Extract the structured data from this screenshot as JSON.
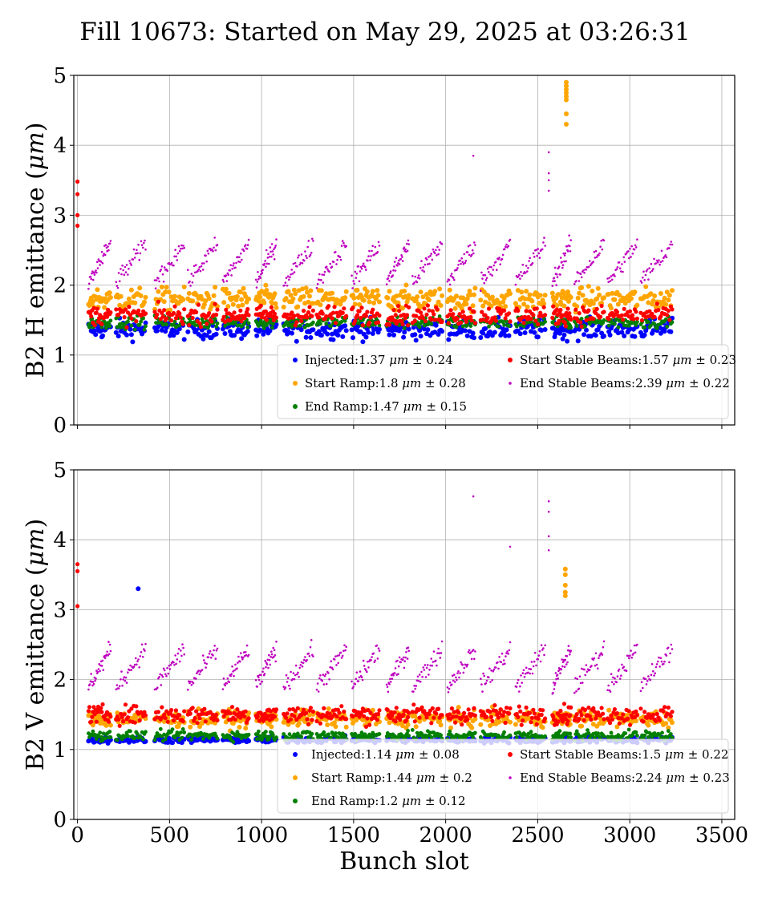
{
  "title": "Fill 10673: Started on May 29, 2025 at 03:26:31",
  "chart_data": [
    {
      "type": "scatter",
      "ylabel": "B2 H emittance (μm)",
      "xlabel": "",
      "xlim": [
        -20,
        3570
      ],
      "ylim": [
        0,
        5
      ],
      "xticks": [
        0,
        500,
        1000,
        1500,
        2000,
        2500,
        3000,
        3500
      ],
      "xtick_labels_visible": false,
      "yticks": [
        0,
        1,
        2,
        3,
        4,
        5
      ],
      "grid": true,
      "legend_position": "lower-right",
      "series": [
        {
          "name": "Injected",
          "label": "Injected:1.37 μm ± 0.24",
          "color": "#0000ff",
          "mean": 1.37,
          "std": 0.24,
          "marker_size": 3
        },
        {
          "name": "Start Ramp",
          "label": "Start Ramp:1.8 μm ± 0.28",
          "color": "#ffa500",
          "mean": 1.8,
          "std": 0.28,
          "marker_size": 3
        },
        {
          "name": "End Ramp",
          "label": "End Ramp:1.47 μm ± 0.15",
          "color": "#008000",
          "mean": 1.47,
          "std": 0.15,
          "marker_size": 2.4
        },
        {
          "name": "Start Stable Beams",
          "label": "Start Stable Beams:1.57 μm ± 0.23",
          "color": "#ff0000",
          "mean": 1.57,
          "std": 0.23,
          "marker_size": 2.6
        },
        {
          "name": "End Stable Beams",
          "label": "End Stable Beams:2.39 μm ± 0.22",
          "color": "#bf00bf",
          "mean": 2.39,
          "std": 0.22,
          "marker_size": 1.3
        }
      ],
      "outliers": [
        {
          "series": 1,
          "x": 2655,
          "values": [
            4.9,
            4.85,
            4.8,
            4.75,
            4.7,
            4.65,
            4.45,
            4.3
          ]
        },
        {
          "series": 4,
          "x": 2560,
          "values": [
            3.9,
            3.6,
            3.5,
            3.35
          ]
        },
        {
          "series": 4,
          "x": 2150,
          "values": [
            3.85
          ]
        },
        {
          "series": 3,
          "x": 0,
          "values": [
            3.48,
            3.3,
            3.0,
            2.85
          ]
        }
      ]
    },
    {
      "type": "scatter",
      "ylabel": "B2 V emittance (μm)",
      "xlabel": "Bunch slot",
      "xlim": [
        -20,
        3570
      ],
      "ylim": [
        0,
        5
      ],
      "xticks": [
        0,
        500,
        1000,
        1500,
        2000,
        2500,
        3000,
        3500
      ],
      "xtick_labels_visible": true,
      "yticks": [
        0,
        1,
        2,
        3,
        4,
        5
      ],
      "grid": true,
      "legend_position": "lower-right",
      "series": [
        {
          "name": "Injected",
          "label": "Injected:1.14 μm ± 0.08",
          "color": "#0000ff",
          "mean": 1.14,
          "std": 0.08,
          "marker_size": 3
        },
        {
          "name": "Start Ramp",
          "label": "Start Ramp:1.44 μm ± 0.2",
          "color": "#ffa500",
          "mean": 1.44,
          "std": 0.2,
          "marker_size": 3
        },
        {
          "name": "End Ramp",
          "label": "End Ramp:1.2 μm ± 0.12",
          "color": "#008000",
          "mean": 1.2,
          "std": 0.12,
          "marker_size": 2.4
        },
        {
          "name": "Start Stable Beams",
          "label": "Start Stable Beams:1.5 μm ± 0.22",
          "color": "#ff0000",
          "mean": 1.5,
          "std": 0.22,
          "marker_size": 2.6
        },
        {
          "name": "End Stable Beams",
          "label": "End Stable Beams:2.24 μm ± 0.23",
          "color": "#bf00bf",
          "mean": 2.24,
          "std": 0.23,
          "marker_size": 1.3
        }
      ],
      "outliers": [
        {
          "series": 4,
          "x": 2150,
          "values": [
            4.62
          ]
        },
        {
          "series": 4,
          "x": 2560,
          "values": [
            4.55,
            4.4,
            4.05,
            3.85
          ]
        },
        {
          "series": 4,
          "x": 2350,
          "values": [
            3.9
          ]
        },
        {
          "series": 1,
          "x": 2650,
          "values": [
            3.58,
            3.5,
            3.35,
            3.25,
            3.2
          ]
        },
        {
          "series": 0,
          "x": 330,
          "values": [
            3.3
          ]
        },
        {
          "series": 3,
          "x": 0,
          "values": [
            3.65,
            3.55,
            3.05
          ]
        }
      ]
    }
  ],
  "bunch_trains": [
    {
      "x0": 60,
      "x1": 180
    },
    {
      "x0": 210,
      "x1": 370
    },
    {
      "x0": 420,
      "x1": 580
    },
    {
      "x0": 600,
      "x1": 760
    },
    {
      "x0": 790,
      "x1": 930
    },
    {
      "x0": 970,
      "x1": 1080
    },
    {
      "x0": 1120,
      "x1": 1280
    },
    {
      "x0": 1300,
      "x1": 1460
    },
    {
      "x0": 1490,
      "x1": 1640
    },
    {
      "x0": 1680,
      "x1": 1800
    },
    {
      "x0": 1820,
      "x1": 1980
    },
    {
      "x0": 2010,
      "x1": 2160
    },
    {
      "x0": 2190,
      "x1": 2350
    },
    {
      "x0": 2380,
      "x1": 2540
    },
    {
      "x0": 2580,
      "x1": 2680
    },
    {
      "x0": 2700,
      "x1": 2860
    },
    {
      "x0": 2880,
      "x1": 3040
    },
    {
      "x0": 3060,
      "x1": 3230
    }
  ]
}
